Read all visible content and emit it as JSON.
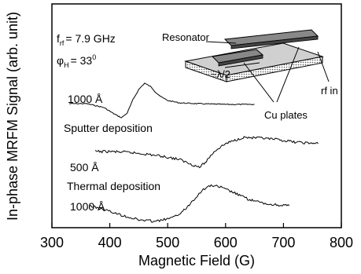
{
  "chart_data": {
    "type": "line",
    "xlabel": "Magnetic Field (G)",
    "ylabel": "In-phase MRFM Signal (arb. unit)",
    "xlim": [
      300,
      800
    ],
    "xticks": [
      300,
      400,
      500,
      600,
      700,
      800
    ],
    "y_ticks_shown": false,
    "grid": false,
    "annotations": {
      "frequency": "f",
      "frequency_sub": "rf",
      "frequency_value": "= 7.9 GHz",
      "angle": "φ",
      "angle_sub": "H",
      "angle_value": "= 33",
      "angle_sup": "0",
      "sputter_thickness": "1000 Å",
      "sputter_label": "Sputter deposition",
      "thermal_thickness_1": "500 Å",
      "thermal_label": "Thermal deposition",
      "thermal_thickness_2": "1000 Å"
    },
    "inset": {
      "labels": {
        "resonator": "Resonator",
        "wavelength": "~λ/2",
        "rf_in": "rf in",
        "cu_plates": "Cu plates"
      }
    },
    "series": [
      {
        "x": [
          330,
          360,
          390,
          405,
          420,
          430,
          440,
          450,
          460,
          470,
          480,
          490,
          500,
          520,
          550,
          600,
          650
        ],
        "y": [
          0.0,
          0.0,
          -0.05,
          -0.12,
          -0.18,
          -0.12,
          0.05,
          0.18,
          0.26,
          0.22,
          0.14,
          0.08,
          0.04,
          0.01,
          0.0,
          -0.01,
          -0.01
        ]
      },
      {
        "x": [
          375,
          400,
          430,
          460,
          490,
          520,
          540,
          555,
          565,
          580,
          600,
          630,
          660,
          690,
          720,
          760
        ],
        "y": [
          0.0,
          0.0,
          -0.01,
          -0.03,
          -0.06,
          -0.1,
          -0.16,
          -0.2,
          -0.14,
          0.0,
          0.1,
          0.18,
          0.17,
          0.15,
          0.12,
          0.1
        ]
      },
      {
        "x": [
          365,
          390,
          420,
          450,
          480,
          510,
          530,
          545,
          560,
          575,
          590,
          610,
          640,
          670,
          710
        ],
        "y": [
          0.0,
          -0.05,
          -0.12,
          -0.18,
          -0.2,
          -0.15,
          -0.05,
          0.08,
          0.2,
          0.26,
          0.24,
          0.18,
          0.08,
          0.02,
          0.0
        ]
      }
    ]
  }
}
